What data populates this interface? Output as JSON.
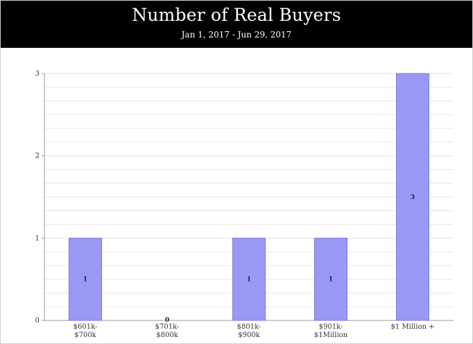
{
  "header": {
    "title": "Number of Real Buyers",
    "subtitle": "Jan 1, 2017 - Jun 29, 2017"
  },
  "colors": {
    "bar_fill": "#9999f5",
    "bar_stroke": "#7a7ae0",
    "grid": "#e6e6e6",
    "axis": "#999999",
    "header_bg": "#000000"
  },
  "chart_data": {
    "type": "bar",
    "categories": [
      [
        "$601k-",
        "$700k"
      ],
      [
        "$701k-",
        "$800k"
      ],
      [
        "$801k-",
        "$900k"
      ],
      [
        "$901k-",
        "$1Million"
      ],
      [
        "$1 Million +"
      ]
    ],
    "values": [
      1,
      0,
      1,
      1,
      3
    ],
    "data_labels": [
      "1",
      "0",
      "1",
      "1",
      "3"
    ],
    "ylim": [
      0,
      3
    ],
    "yticks": [
      0,
      1,
      2,
      3
    ],
    "minor_grid_per_unit": 6,
    "xlabel": "",
    "ylabel": "",
    "grid": true,
    "legend": "none"
  }
}
